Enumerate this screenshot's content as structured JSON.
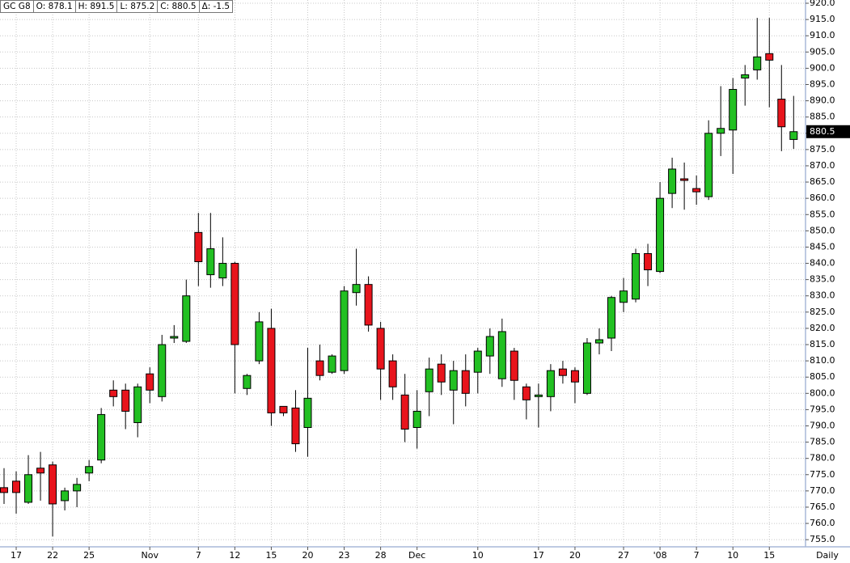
{
  "chart_data": {
    "type": "candlestick",
    "categories": [
      null,
      "17",
      null,
      null,
      "22",
      null,
      null,
      "25",
      null,
      null,
      null,
      null,
      "Nov",
      null,
      null,
      null,
      "7",
      null,
      null,
      "12",
      null,
      null,
      "15",
      null,
      null,
      "20",
      null,
      null,
      "23",
      null,
      null,
      "28",
      null,
      null,
      "Dec",
      null,
      null,
      null,
      null,
      "10",
      null,
      null,
      null,
      null,
      "17",
      null,
      null,
      "20",
      null,
      null,
      null,
      "27",
      null,
      null,
      "'08",
      null,
      null,
      "7",
      null,
      null,
      "10",
      null,
      null,
      "15",
      null,
      null
    ],
    "open": [
      771,
      773,
      766.5,
      777,
      778,
      767,
      770,
      775.5,
      779.5,
      801,
      801,
      791,
      806,
      799,
      817,
      816,
      849.5,
      836.5,
      835.5,
      840,
      801.5,
      810,
      820,
      796,
      795.5,
      789.5,
      810,
      806.5,
      807,
      831,
      833.5,
      820,
      810,
      799.5,
      789.5,
      800.5,
      809,
      801,
      807,
      806.5,
      811.5,
      804.5,
      813,
      802,
      799,
      799,
      807.5,
      807,
      800,
      815.5,
      817,
      828,
      829,
      843,
      837.5,
      861.5,
      866,
      863,
      860.5,
      880,
      881,
      897,
      899.5,
      904.5,
      890.5,
      878.1
    ],
    "high": [
      777,
      776,
      781,
      782,
      779,
      771,
      774,
      779.5,
      795.5,
      804,
      803,
      803,
      808,
      818,
      821,
      835,
      855.5,
      855.5,
      848,
      840.5,
      806,
      825,
      826,
      796,
      801,
      814,
      815,
      812,
      833,
      844.5,
      836,
      822,
      812,
      806,
      801,
      811,
      812,
      810,
      812,
      814,
      820,
      823,
      814,
      803,
      803,
      809,
      810,
      808,
      817,
      820,
      830,
      835.5,
      844.5,
      846,
      865,
      872.5,
      871,
      867,
      884,
      894.5,
      897,
      901,
      915.5,
      915.5,
      901,
      891.5
    ],
    "low": [
      766,
      763,
      766,
      767,
      756,
      764,
      765,
      773,
      778.5,
      796,
      789,
      786.5,
      797,
      797.5,
      815.5,
      815.5,
      833,
      832.5,
      833,
      800,
      799.5,
      809,
      790,
      793,
      782,
      780.5,
      804,
      806,
      806,
      827,
      819,
      798,
      798,
      785,
      783,
      793,
      799.5,
      790.5,
      796,
      800,
      806,
      802,
      798,
      792,
      789.5,
      794.5,
      803,
      797,
      799.5,
      812,
      813,
      825,
      828,
      833,
      837,
      857,
      856.5,
      858,
      859.5,
      873,
      867.5,
      888.5,
      896.5,
      888,
      874.5,
      875.2
    ],
    "close": [
      769.5,
      769.5,
      775,
      775.5,
      766,
      770,
      772,
      777.5,
      793.5,
      799,
      794.5,
      802,
      801,
      815,
      817.5,
      830,
      840.5,
      844.5,
      840,
      815,
      805.5,
      822,
      794,
      794,
      784.5,
      798.5,
      805.5,
      811.5,
      831.5,
      833.5,
      821,
      807.5,
      802,
      789,
      794.5,
      807.5,
      803.5,
      807,
      800,
      813,
      817.5,
      819,
      804,
      798,
      799.5,
      807,
      805.5,
      803.5,
      815.5,
      816.5,
      829.5,
      831.5,
      843,
      838,
      860,
      869,
      865.5,
      862,
      880,
      881.5,
      893.5,
      898,
      903.5,
      902.5,
      882,
      880.5
    ],
    "up_color": "#22c022",
    "down_color": "#e8141c",
    "ylim": [
      752.8,
      921.0
    ],
    "yticks": [
      {
        "value": 755,
        "label": "755.0"
      },
      {
        "value": 760,
        "label": "760.0"
      },
      {
        "value": 765,
        "label": "765.0"
      },
      {
        "value": 770,
        "label": "770.0"
      },
      {
        "value": 775,
        "label": "775.0"
      },
      {
        "value": 780,
        "label": "780.0"
      },
      {
        "value": 785,
        "label": "785.0"
      },
      {
        "value": 790,
        "label": "790.0"
      },
      {
        "value": 795,
        "label": "795.0"
      },
      {
        "value": 800,
        "label": "800.0"
      },
      {
        "value": 805,
        "label": "805.0"
      },
      {
        "value": 810,
        "label": "810.0"
      },
      {
        "value": 815,
        "label": "815.0"
      },
      {
        "value": 820,
        "label": "820.0"
      },
      {
        "value": 825,
        "label": "825.0"
      },
      {
        "value": 830,
        "label": "830.0"
      },
      {
        "value": 835,
        "label": "835.0"
      },
      {
        "value": 840,
        "label": "840.0"
      },
      {
        "value": 845,
        "label": "845.0"
      },
      {
        "value": 850,
        "label": "850.0"
      },
      {
        "value": 855,
        "label": "855.0"
      },
      {
        "value": 860,
        "label": "860.0"
      },
      {
        "value": 865,
        "label": "865.0"
      },
      {
        "value": 870,
        "label": "870.0"
      },
      {
        "value": 875,
        "label": "875.0"
      },
      {
        "value": 880,
        "label": "880.0"
      },
      {
        "value": 885,
        "label": "885.0"
      },
      {
        "value": 890,
        "label": "890.0"
      },
      {
        "value": 895,
        "label": "895.0"
      },
      {
        "value": 900,
        "label": "900.0"
      },
      {
        "value": 905,
        "label": "905.0"
      },
      {
        "value": 910,
        "label": "910.0"
      },
      {
        "value": 915,
        "label": "915.0"
      },
      {
        "value": 920,
        "label": "920.0"
      }
    ],
    "grid": true,
    "last_value": 880.5,
    "period_label": "Daily"
  },
  "header": [
    "GC G8",
    "O: 878.1",
    "H: 891.5",
    "L: 875.2",
    "C: 880.5",
    "Δ: -1.5"
  ]
}
